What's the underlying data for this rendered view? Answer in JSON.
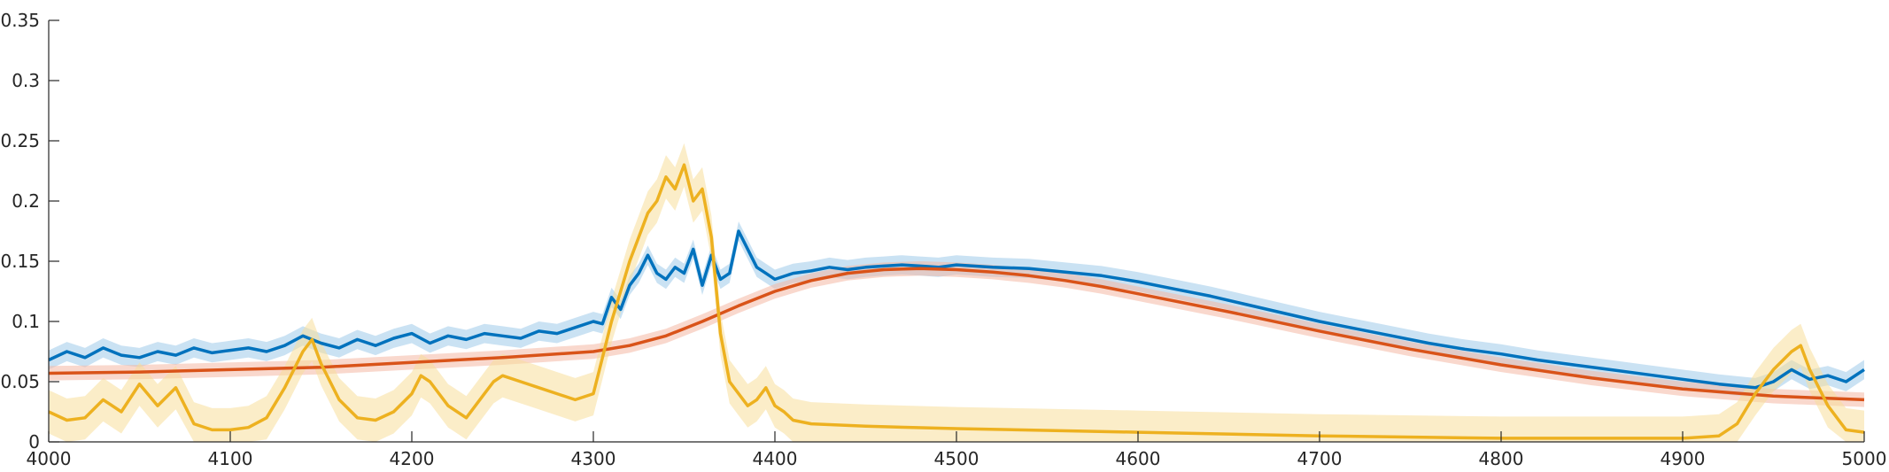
{
  "chart_data": {
    "type": "line",
    "title": "",
    "xlabel": "",
    "ylabel": "",
    "xlim": [
      4000,
      5000
    ],
    "ylim": [
      0,
      0.35
    ],
    "grid": false,
    "x_ticks": [
      "4000",
      "4100",
      "4200",
      "4300",
      "4400",
      "4500",
      "4600",
      "4700",
      "4800",
      "4900",
      "5000"
    ],
    "y_ticks": [
      "0",
      "0.05",
      "0.1",
      "0.15",
      "0.2",
      "0.25",
      "0.3",
      "0.35"
    ],
    "series": [
      {
        "color": "#0072BD",
        "band_color": "#9ECAE9",
        "band_halfwidth": 0.008,
        "x": [
          4000,
          4010,
          4020,
          4030,
          4040,
          4050,
          4060,
          4070,
          4080,
          4090,
          4100,
          4110,
          4120,
          4130,
          4140,
          4150,
          4160,
          4170,
          4180,
          4190,
          4200,
          4210,
          4220,
          4230,
          4240,
          4250,
          4260,
          4270,
          4280,
          4290,
          4300,
          4305,
          4310,
          4315,
          4320,
          4325,
          4330,
          4335,
          4340,
          4345,
          4350,
          4355,
          4360,
          4365,
          4370,
          4375,
          4380,
          4385,
          4390,
          4395,
          4400,
          4410,
          4420,
          4430,
          4440,
          4450,
          4460,
          4470,
          4480,
          4490,
          4500,
          4520,
          4540,
          4560,
          4580,
          4600,
          4620,
          4640,
          4660,
          4680,
          4700,
          4720,
          4740,
          4760,
          4780,
          4800,
          4820,
          4840,
          4860,
          4880,
          4900,
          4920,
          4940,
          4950,
          4960,
          4970,
          4980,
          4990,
          5000
        ],
        "y": [
          0.068,
          0.075,
          0.07,
          0.078,
          0.072,
          0.07,
          0.075,
          0.072,
          0.078,
          0.074,
          0.076,
          0.078,
          0.075,
          0.08,
          0.088,
          0.082,
          0.078,
          0.085,
          0.08,
          0.086,
          0.09,
          0.082,
          0.088,
          0.085,
          0.09,
          0.088,
          0.086,
          0.092,
          0.09,
          0.095,
          0.1,
          0.098,
          0.12,
          0.11,
          0.13,
          0.14,
          0.155,
          0.14,
          0.135,
          0.145,
          0.14,
          0.16,
          0.13,
          0.155,
          0.135,
          0.14,
          0.175,
          0.16,
          0.145,
          0.14,
          0.135,
          0.14,
          0.142,
          0.145,
          0.143,
          0.145,
          0.146,
          0.147,
          0.146,
          0.145,
          0.147,
          0.145,
          0.144,
          0.141,
          0.138,
          0.133,
          0.127,
          0.121,
          0.114,
          0.107,
          0.1,
          0.094,
          0.088,
          0.082,
          0.077,
          0.073,
          0.068,
          0.064,
          0.06,
          0.056,
          0.052,
          0.048,
          0.045,
          0.05,
          0.06,
          0.052,
          0.055,
          0.05,
          0.06
        ]
      },
      {
        "color": "#D95319",
        "band_color": "#F4B8A4",
        "band_halfwidth": 0.006,
        "x": [
          4000,
          4050,
          4100,
          4150,
          4200,
          4250,
          4300,
          4320,
          4340,
          4360,
          4380,
          4400,
          4420,
          4440,
          4460,
          4480,
          4500,
          4520,
          4540,
          4560,
          4580,
          4600,
          4650,
          4700,
          4750,
          4800,
          4850,
          4900,
          4950,
          5000
        ],
        "y": [
          0.057,
          0.058,
          0.06,
          0.062,
          0.066,
          0.07,
          0.075,
          0.08,
          0.088,
          0.1,
          0.113,
          0.125,
          0.134,
          0.14,
          0.143,
          0.144,
          0.143,
          0.141,
          0.138,
          0.134,
          0.129,
          0.123,
          0.108,
          0.092,
          0.077,
          0.064,
          0.053,
          0.044,
          0.038,
          0.035
        ]
      },
      {
        "color": "#EDB120",
        "band_color": "#F8DE9A",
        "band_halfwidth": 0.018,
        "x": [
          4000,
          4010,
          4020,
          4030,
          4040,
          4050,
          4060,
          4070,
          4080,
          4090,
          4100,
          4110,
          4120,
          4130,
          4135,
          4140,
          4145,
          4150,
          4160,
          4170,
          4180,
          4190,
          4200,
          4205,
          4210,
          4220,
          4230,
          4240,
          4245,
          4250,
          4260,
          4270,
          4280,
          4290,
          4300,
          4305,
          4310,
          4315,
          4320,
          4325,
          4330,
          4335,
          4340,
          4345,
          4350,
          4355,
          4360,
          4365,
          4370,
          4375,
          4380,
          4385,
          4390,
          4395,
          4400,
          4405,
          4410,
          4420,
          4450,
          4500,
          4600,
          4700,
          4800,
          4900,
          4920,
          4930,
          4940,
          4950,
          4960,
          4965,
          4970,
          4980,
          4990,
          5000
        ],
        "y": [
          0.025,
          0.018,
          0.02,
          0.035,
          0.025,
          0.048,
          0.03,
          0.045,
          0.015,
          0.01,
          0.01,
          0.012,
          0.02,
          0.045,
          0.06,
          0.075,
          0.085,
          0.065,
          0.035,
          0.02,
          0.018,
          0.025,
          0.04,
          0.055,
          0.05,
          0.03,
          0.02,
          0.04,
          0.05,
          0.055,
          0.05,
          0.045,
          0.04,
          0.035,
          0.04,
          0.07,
          0.1,
          0.125,
          0.15,
          0.17,
          0.19,
          0.2,
          0.22,
          0.21,
          0.23,
          0.2,
          0.21,
          0.17,
          0.09,
          0.05,
          0.04,
          0.03,
          0.035,
          0.045,
          0.03,
          0.025,
          0.018,
          0.015,
          0.013,
          0.011,
          0.008,
          0.005,
          0.003,
          0.003,
          0.005,
          0.015,
          0.04,
          0.06,
          0.075,
          0.08,
          0.06,
          0.03,
          0.01,
          0.008
        ]
      }
    ]
  }
}
